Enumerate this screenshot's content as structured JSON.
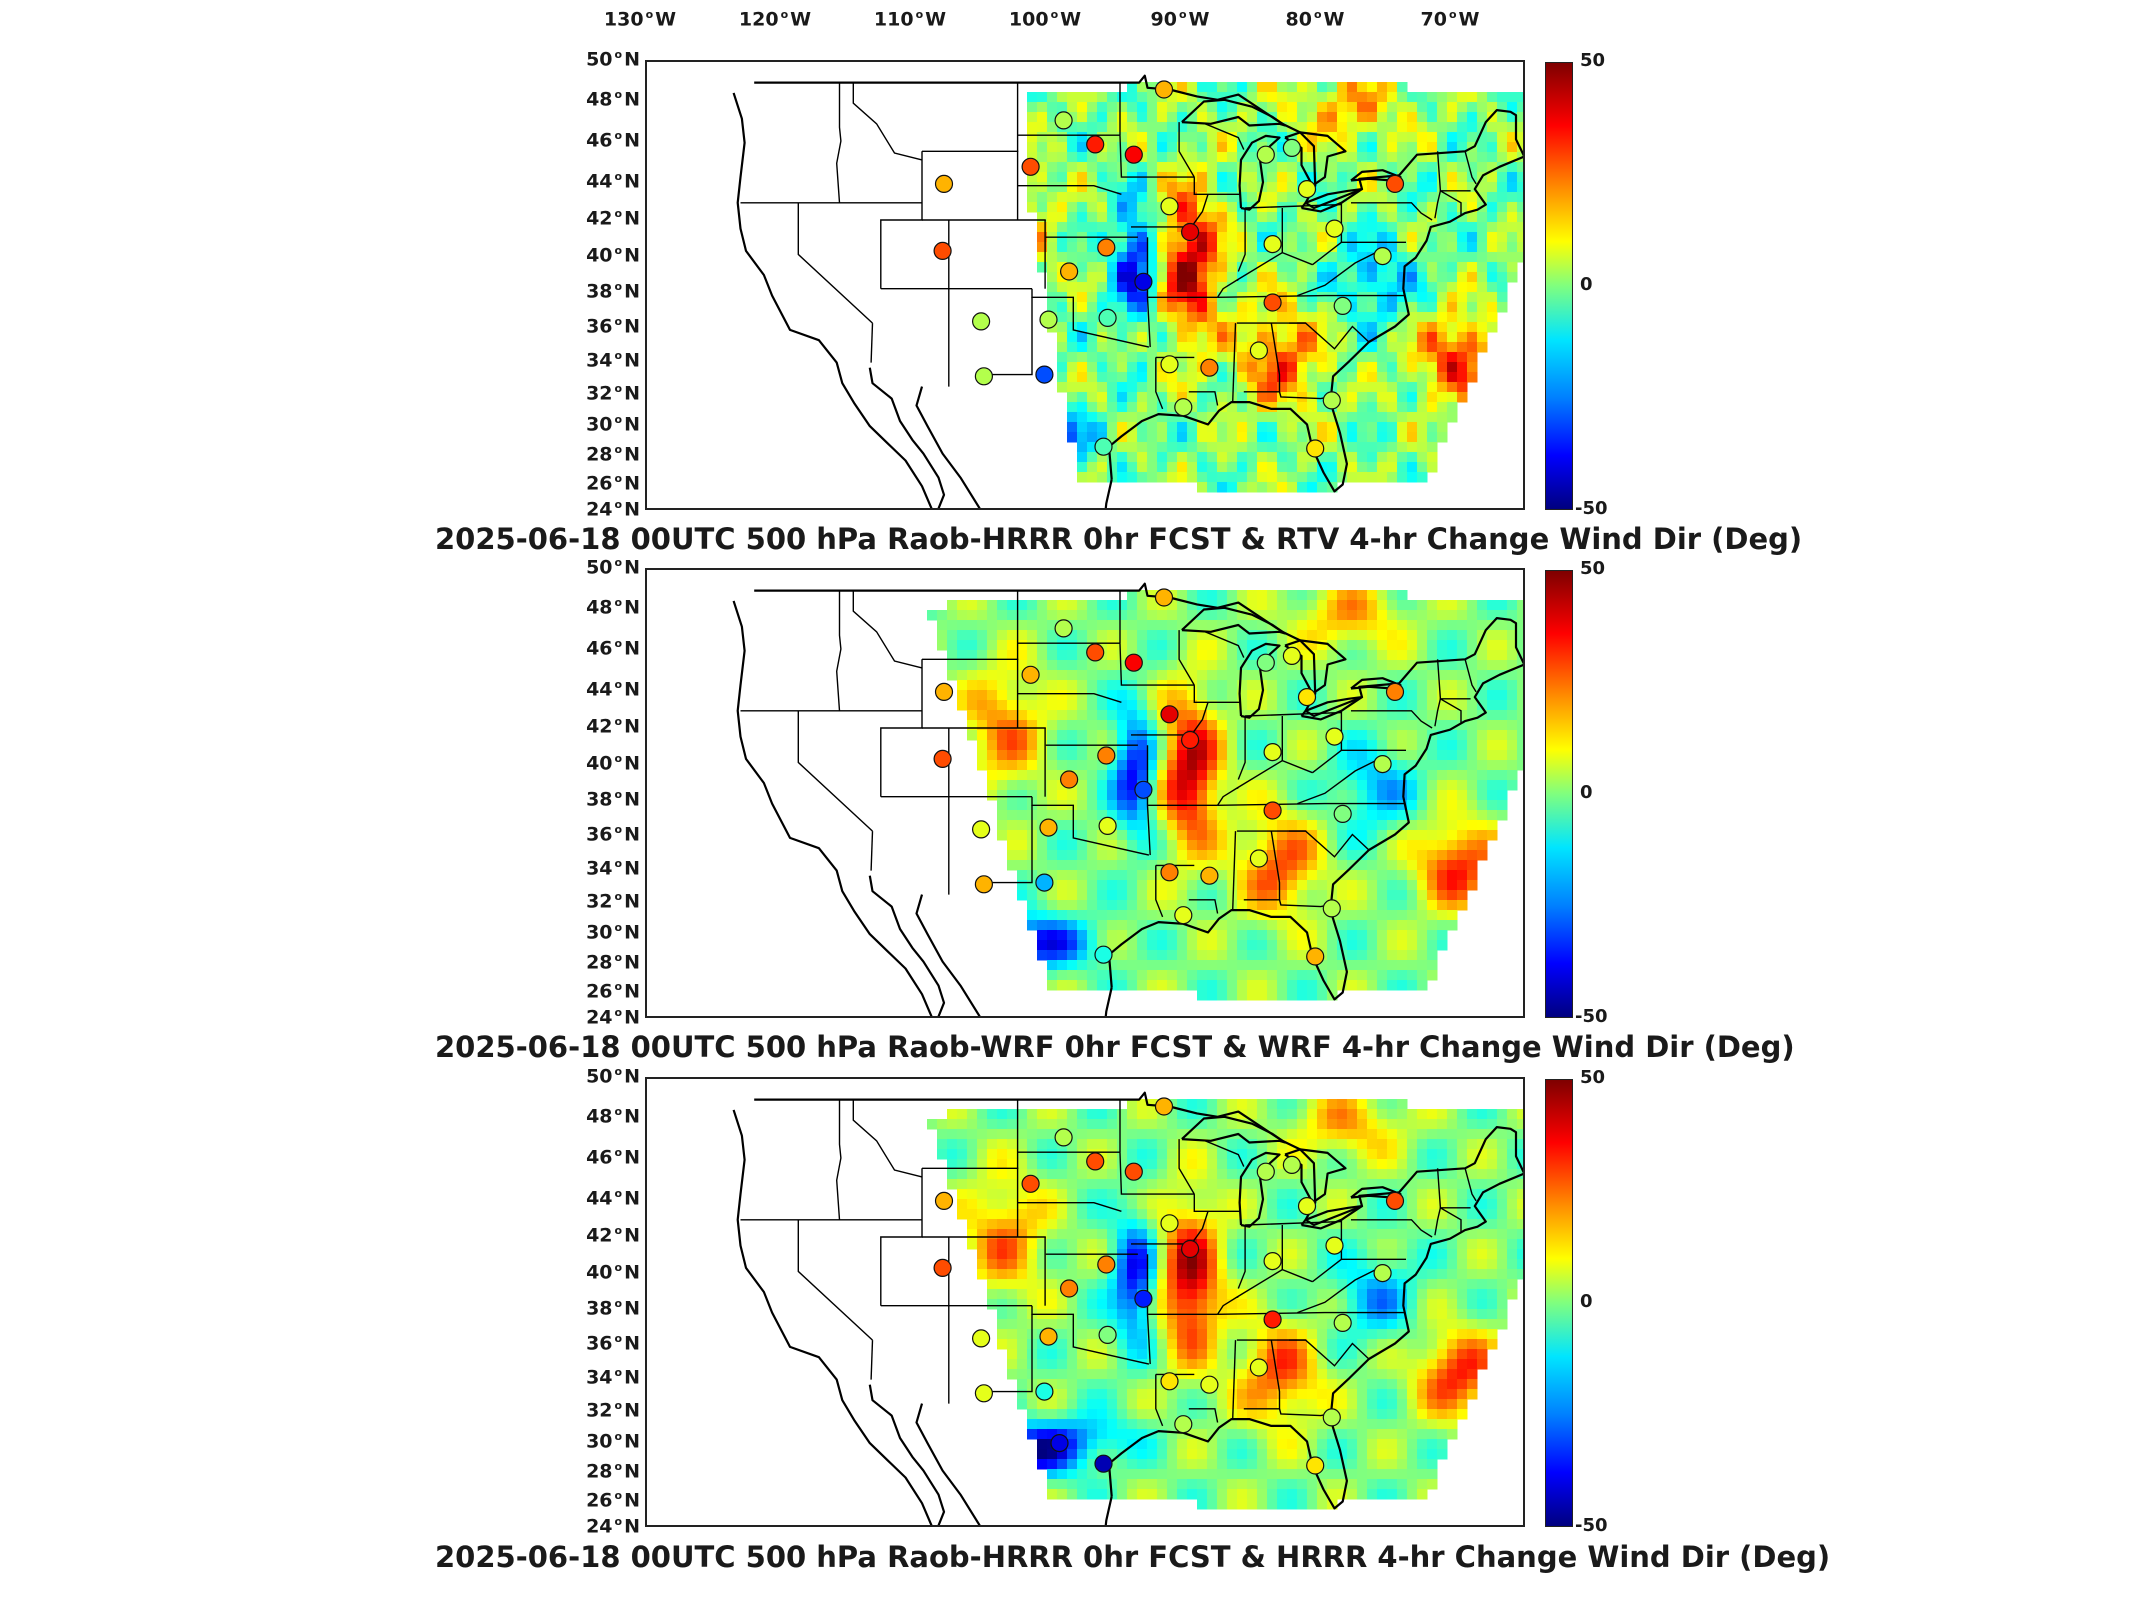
{
  "lon_ticks": [
    "130",
    "120",
    "110",
    "100",
    "90",
    "80",
    "70"
  ],
  "lon_suffix": "W",
  "lat_ticks": [
    "50",
    "48",
    "46",
    "44",
    "42",
    "40",
    "38",
    "36",
    "34",
    "32",
    "30",
    "28",
    "26",
    "24"
  ],
  "lat_suffix": "N",
  "colorbar": {
    "max": "50",
    "mid": "0",
    "min": "-50",
    "colormap": "jet",
    "range": [
      -50,
      50
    ]
  },
  "panels": [
    {
      "title": "2025-06-18 00UTC 500 hPa Raob-HRRR 0hr FCST & RTV 4-hr Change Wind Dir (Deg)",
      "stations": [
        {
          "lon": -109.4,
          "lat": 43.1,
          "value": 20
        },
        {
          "lon": -109.5,
          "lat": 39.2,
          "value": 30
        },
        {
          "lon": -103.1,
          "lat": 44.1,
          "value": 30
        },
        {
          "lon": -100.7,
          "lat": 46.8,
          "value": 5
        },
        {
          "lon": -98.4,
          "lat": 45.4,
          "value": 35
        },
        {
          "lon": -95.6,
          "lat": 44.8,
          "value": 38
        },
        {
          "lon": -93.4,
          "lat": 48.6,
          "value": 20
        },
        {
          "lon": -100.3,
          "lat": 38.0,
          "value": 20
        },
        {
          "lon": -97.6,
          "lat": 39.4,
          "value": 25
        },
        {
          "lon": -94.9,
          "lat": 37.4,
          "value": -40
        },
        {
          "lon": -91.5,
          "lat": 40.3,
          "value": 40
        },
        {
          "lon": -93.0,
          "lat": 41.8,
          "value": 10
        },
        {
          "lon": -106.7,
          "lat": 35.1,
          "value": 5
        },
        {
          "lon": -101.8,
          "lat": 35.2,
          "value": 5
        },
        {
          "lon": -97.5,
          "lat": 35.3,
          "value": -5
        },
        {
          "lon": -102.1,
          "lat": 32.0,
          "value": -30
        },
        {
          "lon": -106.5,
          "lat": 31.9,
          "value": 5
        },
        {
          "lon": -93.0,
          "lat": 32.6,
          "value": 10
        },
        {
          "lon": -90.1,
          "lat": 32.4,
          "value": 25
        },
        {
          "lon": -86.5,
          "lat": 33.4,
          "value": 10
        },
        {
          "lon": -85.5,
          "lat": 36.2,
          "value": 30
        },
        {
          "lon": -80.4,
          "lat": 36.0,
          "value": 0
        },
        {
          "lon": -81.0,
          "lat": 40.5,
          "value": 10
        },
        {
          "lon": -85.5,
          "lat": 39.6,
          "value": 10
        },
        {
          "lon": -86.0,
          "lat": 44.8,
          "value": 5
        },
        {
          "lon": -84.1,
          "lat": 45.2,
          "value": 0
        },
        {
          "lon": -83.0,
          "lat": 42.8,
          "value": 10
        },
        {
          "lon": -76.6,
          "lat": 43.1,
          "value": 30
        },
        {
          "lon": -77.5,
          "lat": 38.9,
          "value": 5
        },
        {
          "lon": -81.2,
          "lat": 30.5,
          "value": 5
        },
        {
          "lon": -82.4,
          "lat": 27.7,
          "value": 15
        },
        {
          "lon": -92.0,
          "lat": 30.1,
          "value": 5
        },
        {
          "lon": -97.8,
          "lat": 27.8,
          "value": -5
        }
      ]
    },
    {
      "title": "2025-06-18 00UTC 500 hPa Raob-WRF 0hr FCST & WRF 4-hr Change Wind Dir (Deg)",
      "stations": [
        {
          "lon": -109.4,
          "lat": 43.1,
          "value": 20
        },
        {
          "lon": -109.5,
          "lat": 39.2,
          "value": 30
        },
        {
          "lon": -103.1,
          "lat": 44.1,
          "value": 20
        },
        {
          "lon": -100.7,
          "lat": 46.8,
          "value": 5
        },
        {
          "lon": -98.4,
          "lat": 45.4,
          "value": 30
        },
        {
          "lon": -95.6,
          "lat": 44.8,
          "value": 38
        },
        {
          "lon": -93.4,
          "lat": 48.6,
          "value": 20
        },
        {
          "lon": -100.3,
          "lat": 38.0,
          "value": 25
        },
        {
          "lon": -97.6,
          "lat": 39.4,
          "value": 25
        },
        {
          "lon": -94.9,
          "lat": 37.4,
          "value": -30
        },
        {
          "lon": -91.5,
          "lat": 40.3,
          "value": 35
        },
        {
          "lon": -93.0,
          "lat": 41.8,
          "value": 40
        },
        {
          "lon": -106.7,
          "lat": 35.1,
          "value": 10
        },
        {
          "lon": -101.8,
          "lat": 35.2,
          "value": 20
        },
        {
          "lon": -97.5,
          "lat": 35.3,
          "value": 10
        },
        {
          "lon": -102.1,
          "lat": 32.0,
          "value": -20
        },
        {
          "lon": -106.5,
          "lat": 31.9,
          "value": 20
        },
        {
          "lon": -93.0,
          "lat": 32.6,
          "value": 25
        },
        {
          "lon": -90.1,
          "lat": 32.4,
          "value": 20
        },
        {
          "lon": -86.5,
          "lat": 33.4,
          "value": 10
        },
        {
          "lon": -85.5,
          "lat": 36.2,
          "value": 30
        },
        {
          "lon": -80.4,
          "lat": 36.0,
          "value": 0
        },
        {
          "lon": -81.0,
          "lat": 40.5,
          "value": 10
        },
        {
          "lon": -85.5,
          "lat": 39.6,
          "value": 10
        },
        {
          "lon": -86.0,
          "lat": 44.8,
          "value": 0
        },
        {
          "lon": -84.1,
          "lat": 45.2,
          "value": 10
        },
        {
          "lon": -83.0,
          "lat": 42.8,
          "value": 15
        },
        {
          "lon": -76.6,
          "lat": 43.1,
          "value": 25
        },
        {
          "lon": -77.5,
          "lat": 38.9,
          "value": 5
        },
        {
          "lon": -81.2,
          "lat": 30.5,
          "value": 5
        },
        {
          "lon": -82.4,
          "lat": 27.7,
          "value": 20
        },
        {
          "lon": -92.0,
          "lat": 30.1,
          "value": 10
        },
        {
          "lon": -97.8,
          "lat": 27.8,
          "value": -10
        }
      ]
    },
    {
      "title": "2025-06-18 00UTC 500 hPa Raob-HRRR 0hr FCST & HRRR 4-hr Change Wind Dir (Deg)",
      "stations": [
        {
          "lon": -109.4,
          "lat": 43.1,
          "value": 20
        },
        {
          "lon": -109.5,
          "lat": 39.2,
          "value": 30
        },
        {
          "lon": -103.1,
          "lat": 44.1,
          "value": 30
        },
        {
          "lon": -100.7,
          "lat": 46.8,
          "value": 5
        },
        {
          "lon": -98.4,
          "lat": 45.4,
          "value": 30
        },
        {
          "lon": -95.6,
          "lat": 44.8,
          "value": 30
        },
        {
          "lon": -93.4,
          "lat": 48.6,
          "value": 20
        },
        {
          "lon": -100.3,
          "lat": 38.0,
          "value": 25
        },
        {
          "lon": -97.6,
          "lat": 39.4,
          "value": 25
        },
        {
          "lon": -94.9,
          "lat": 37.4,
          "value": -35
        },
        {
          "lon": -91.5,
          "lat": 40.3,
          "value": 40
        },
        {
          "lon": -93.0,
          "lat": 41.8,
          "value": 10
        },
        {
          "lon": -106.7,
          "lat": 35.1,
          "value": 10
        },
        {
          "lon": -101.8,
          "lat": 35.2,
          "value": 20
        },
        {
          "lon": -97.5,
          "lat": 35.3,
          "value": 0
        },
        {
          "lon": -102.1,
          "lat": 32.0,
          "value": -10
        },
        {
          "lon": -106.5,
          "lat": 31.9,
          "value": 10
        },
        {
          "lon": -93.0,
          "lat": 32.6,
          "value": 15
        },
        {
          "lon": -90.1,
          "lat": 32.4,
          "value": 10
        },
        {
          "lon": -86.5,
          "lat": 33.4,
          "value": 10
        },
        {
          "lon": -85.5,
          "lat": 36.2,
          "value": 35
        },
        {
          "lon": -80.4,
          "lat": 36.0,
          "value": 5
        },
        {
          "lon": -81.0,
          "lat": 40.5,
          "value": 10
        },
        {
          "lon": -85.5,
          "lat": 39.6,
          "value": 10
        },
        {
          "lon": -86.0,
          "lat": 44.8,
          "value": 5
        },
        {
          "lon": -84.1,
          "lat": 45.2,
          "value": 5
        },
        {
          "lon": -83.0,
          "lat": 42.8,
          "value": 10
        },
        {
          "lon": -76.6,
          "lat": 43.1,
          "value": 30
        },
        {
          "lon": -77.5,
          "lat": 38.9,
          "value": 5
        },
        {
          "lon": -81.2,
          "lat": 30.5,
          "value": 5
        },
        {
          "lon": -82.4,
          "lat": 27.7,
          "value": 15
        },
        {
          "lon": -92.0,
          "lat": 30.1,
          "value": 5
        },
        {
          "lon": -101.0,
          "lat": 29.0,
          "value": -40
        },
        {
          "lon": -97.8,
          "lat": 27.8,
          "value": -45
        }
      ]
    }
  ]
}
